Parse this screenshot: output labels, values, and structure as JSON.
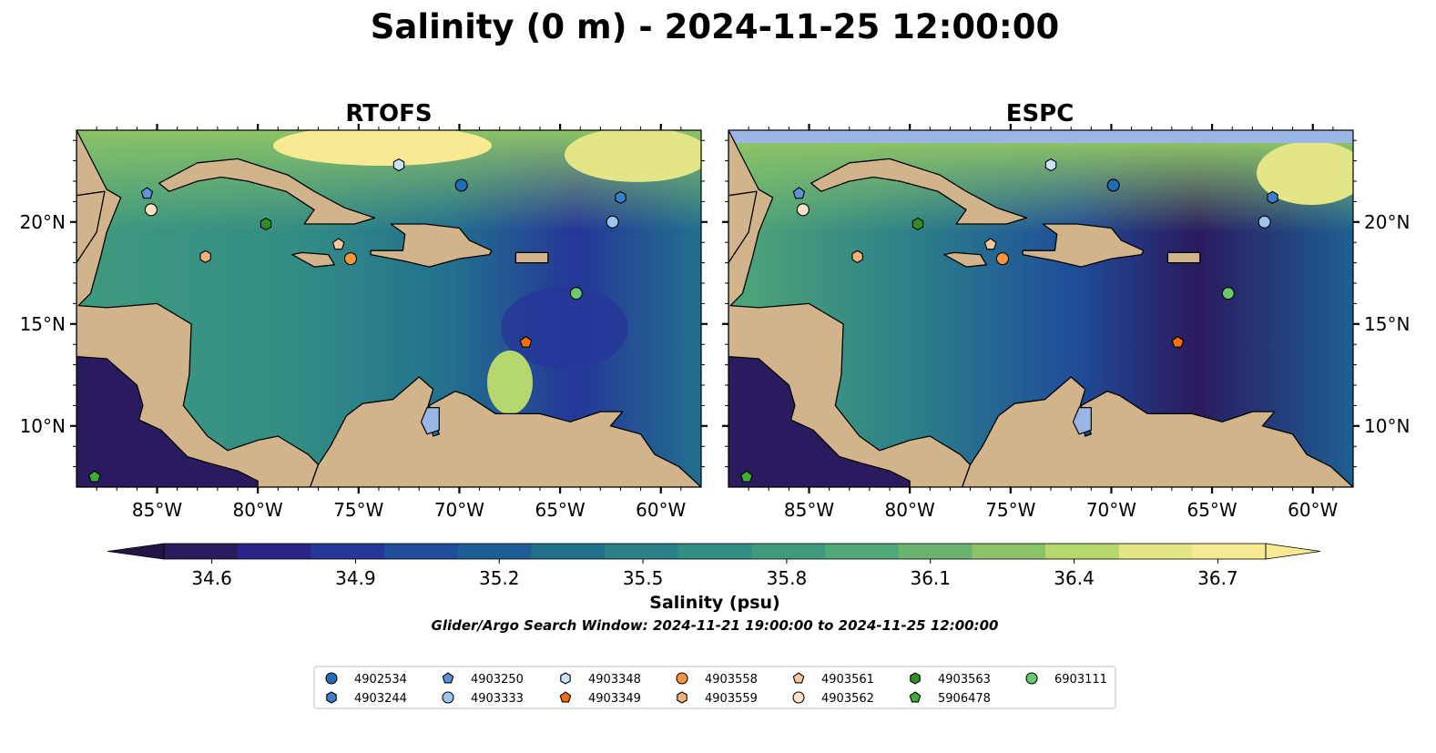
{
  "title": "Salinity (0 m) - 2024-11-25 12:00:00",
  "panels": [
    {
      "name": "RTOFS"
    },
    {
      "name": "ESPC"
    }
  ],
  "map": {
    "lon_range": [
      -89,
      -58
    ],
    "lat_range": [
      7,
      24.5
    ],
    "lon_ticks": [
      -85,
      -80,
      -75,
      -70,
      -65,
      -60
    ],
    "lon_tick_labels": [
      "85°W",
      "80°W",
      "75°W",
      "70°W",
      "65°W",
      "60°W"
    ],
    "lat_ticks": [
      10,
      15,
      20
    ],
    "lat_tick_labels": [
      "10°N",
      "15°N",
      "20°N"
    ],
    "land_color": "#d2b48c",
    "ocean_high_color": "#f7ea92",
    "esp_nodata_color": "#9ab6e6"
  },
  "colorbar": {
    "label": "Salinity (psu)",
    "min": 34.5,
    "max": 36.8,
    "extend": "both",
    "ticks": [
      34.6,
      34.9,
      35.2,
      35.5,
      35.8,
      36.1,
      36.4,
      36.7
    ],
    "tick_labels": [
      "34.6",
      "34.9",
      "35.2",
      "35.5",
      "35.8",
      "36.1",
      "36.4",
      "36.7"
    ],
    "colors": [
      "#2a1a5e",
      "#2a2487",
      "#253798",
      "#1f4e9a",
      "#1d5f94",
      "#22708e",
      "#2b7f89",
      "#338d84",
      "#3f9a7e",
      "#50a777",
      "#69b46f",
      "#8cc366",
      "#b6d66e",
      "#e3e686",
      "#f7ea92"
    ]
  },
  "search_window": "Glider/Argo Search Window: 2024-11-21 19:00:00 to 2024-11-25 12:00:00",
  "floats": [
    {
      "id": "4902534",
      "marker": "circle",
      "color": "#1f6cb5",
      "lon": -69.9,
      "lat": 21.8
    },
    {
      "id": "4903244",
      "marker": "hexagon",
      "color": "#3b7fcc",
      "lon": -62.0,
      "lat": 21.2
    },
    {
      "id": "4903250",
      "marker": "pentagon",
      "color": "#5a93db",
      "lon": -85.5,
      "lat": 21.4
    },
    {
      "id": "4903333",
      "marker": "circle",
      "color": "#9cc6ee",
      "lon": -62.4,
      "lat": 20.0
    },
    {
      "id": "4903348",
      "marker": "hexagon",
      "color": "#c8e2f7",
      "lon": -73.0,
      "lat": 22.8
    },
    {
      "id": "4903349",
      "marker": "pentagon",
      "color": "#f26f0c",
      "lon": -66.7,
      "lat": 14.1
    },
    {
      "id": "4903558",
      "marker": "circle",
      "color": "#f5953e",
      "lon": -75.4,
      "lat": 18.2
    },
    {
      "id": "4903559",
      "marker": "hexagon",
      "color": "#f7b079",
      "lon": -82.6,
      "lat": 18.3
    },
    {
      "id": "4903561",
      "marker": "pentagon",
      "color": "#f8c79b",
      "lon": -76.0,
      "lat": 18.9
    },
    {
      "id": "4903562",
      "marker": "circle",
      "color": "#fde2c6",
      "lon": -85.3,
      "lat": 20.6
    },
    {
      "id": "4903563",
      "marker": "hexagon",
      "color": "#2e8f27",
      "lon": -79.6,
      "lat": 19.9
    },
    {
      "id": "5906478",
      "marker": "pentagon",
      "color": "#3dae35",
      "lon": -88.1,
      "lat": 7.5
    },
    {
      "id": "6903111",
      "marker": "circle",
      "color": "#69c96b",
      "lon": -64.2,
      "lat": 16.5
    }
  ]
}
